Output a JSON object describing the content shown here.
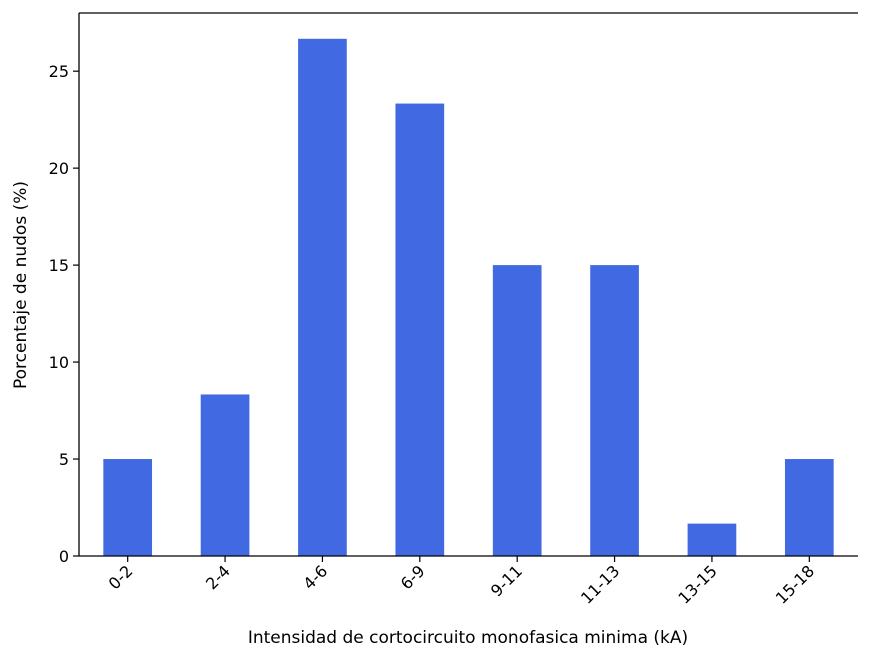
{
  "chart_data": {
    "type": "bar",
    "categories": [
      "0-2",
      "2-4",
      "4-6",
      "6-9",
      "9-11",
      "11-13",
      "13-15",
      "15-18"
    ],
    "values": [
      5.0,
      8.33,
      26.67,
      23.33,
      15.0,
      15.0,
      1.67,
      5.0
    ],
    "xlabel": "Intensidad de cortocircuito monofasica minima (kA)",
    "ylabel": "Porcentaje de nudos (%)",
    "ylim": [
      0,
      28
    ],
    "yticks": [
      0,
      5,
      10,
      15,
      20,
      25
    ],
    "bar_color": "#4169e1",
    "grid": false,
    "legend": "none"
  }
}
